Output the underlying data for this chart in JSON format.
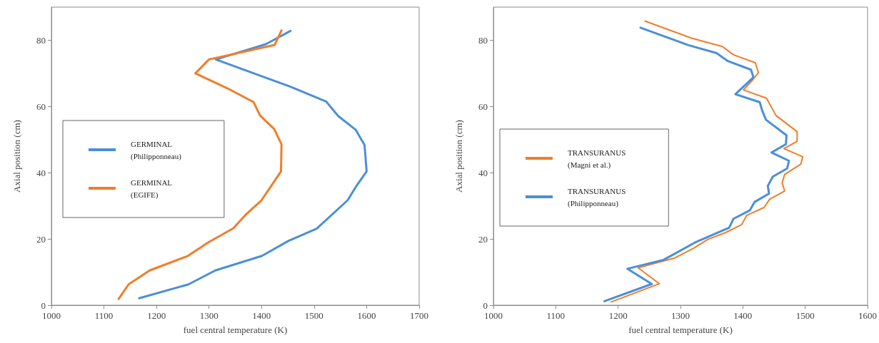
{
  "chart_data": [
    {
      "type": "line",
      "xlabel": "fuel central temperature (K)",
      "ylabel": "Axial position (cm)",
      "xlim": [
        1000,
        1700
      ],
      "xticks": [
        1000,
        1100,
        1200,
        1300,
        1400,
        1500,
        1600,
        1700
      ],
      "ylim": [
        0,
        90
      ],
      "yticks": [
        0,
        20,
        40,
        60,
        80
      ],
      "grid": false,
      "legend": "left",
      "marker": "none",
      "line_style": "solid",
      "series": [
        {
          "name": "GERMINAL\n(Philipponneau)",
          "color": "#4a8fd8",
          "x": [
            1167,
            1261,
            1312,
            1401,
            1451,
            1505,
            1564,
            1581,
            1600,
            1596,
            1579,
            1546,
            1523,
            1456,
            1313,
            1408,
            1455
          ],
          "values": [
            2.1,
            6.3,
            10.5,
            14.9,
            19.4,
            23.1,
            31.7,
            36.1,
            40.4,
            48.4,
            53,
            57.1,
            61.5,
            65.9,
            74.2,
            78.8,
            82.8
          ]
        },
        {
          "name": "GERMINAL\n(EGIFE)",
          "color": "#f07d2a",
          "x": [
            1128,
            1147,
            1187,
            1260,
            1299,
            1346,
            1371,
            1400,
            1437,
            1438,
            1424,
            1397,
            1385,
            1335,
            1274,
            1300,
            1425,
            1438
          ],
          "values": [
            1.9,
            6.3,
            10.5,
            14.9,
            19,
            23.2,
            27.5,
            31.7,
            40.4,
            48.6,
            53.2,
            57.3,
            61.3,
            65.5,
            70,
            74.2,
            78.6,
            83
          ]
        }
      ]
    },
    {
      "type": "line",
      "xlabel": "fuel central temperature (K)",
      "ylabel": "Axial position (cm)",
      "xlim": [
        1000,
        1600
      ],
      "xticks": [
        1000,
        1100,
        1200,
        1300,
        1400,
        1500,
        1600
      ],
      "ylim": [
        0,
        90
      ],
      "yticks": [
        0,
        20,
        40,
        60,
        80
      ],
      "grid": false,
      "legend": "left",
      "marker": "none",
      "line_style": "solid",
      "series": [
        {
          "name": "TRANSURANUS\n(Magni et al.)",
          "color": "#f07d2a",
          "x": [
            1189,
            1266,
            1232,
            1290,
            1321,
            1344,
            1372,
            1398,
            1406,
            1434,
            1443,
            1467,
            1463,
            1467,
            1493,
            1496,
            1466,
            1487,
            1487,
            1453,
            1438,
            1401,
            1416,
            1425,
            1420,
            1385,
            1367,
            1317,
            1243
          ],
          "values": [
            1.0,
            6.5,
            11.3,
            14.2,
            17.2,
            19.9,
            21.9,
            24.3,
            27.1,
            29.5,
            32,
            34.5,
            36.9,
            39.5,
            42.6,
            44.8,
            47.3,
            49.5,
            52.4,
            57.3,
            62.5,
            65,
            68.1,
            70.2,
            73.2,
            75.6,
            78.1,
            80.7,
            85.8
          ]
        },
        {
          "name": "TRANSURANUS\n(Philipponneau)",
          "color": "#4a8fd8",
          "x": [
            1178,
            1254,
            1215,
            1273,
            1323,
            1378,
            1385,
            1411,
            1419,
            1442,
            1440,
            1448,
            1471,
            1474,
            1446,
            1469,
            1470,
            1437,
            1431,
            1427,
            1388,
            1417,
            1413,
            1376,
            1358,
            1313,
            1236
          ],
          "values": [
            1.2,
            6.4,
            11,
            13.7,
            18.9,
            23.4,
            26.1,
            28.6,
            31.2,
            33.7,
            36,
            38.8,
            41.3,
            43.6,
            46.1,
            48.6,
            51.3,
            56,
            58.8,
            61.3,
            63.7,
            68.8,
            71.1,
            73.7,
            76.1,
            78.5,
            83.8
          ]
        }
      ]
    }
  ]
}
